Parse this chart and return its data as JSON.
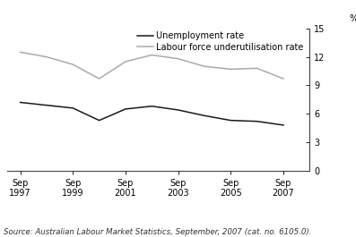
{
  "source_text": "Source: Australian Labour Market Statistics, September, 2007 (cat. no. 6105.0).",
  "ylabel": "%",
  "ylim": [
    0,
    15
  ],
  "yticks": [
    0,
    3,
    6,
    9,
    12,
    15
  ],
  "x_tick_positions": [
    1997,
    1999,
    2001,
    2003,
    2005,
    2007
  ],
  "x_labels": [
    "Sep\n1997",
    "Sep\n1999",
    "Sep\n2001",
    "Sep\n2003",
    "Sep\n2005",
    "Sep\n2007"
  ],
  "xlim": [
    1996.5,
    2008.0
  ],
  "unemployment_x": [
    1997,
    1998,
    1999,
    2000,
    2001,
    2002,
    2003,
    2004,
    2005,
    2006,
    2007
  ],
  "unemployment_y": [
    7.2,
    6.9,
    6.6,
    5.3,
    6.5,
    6.8,
    6.4,
    5.8,
    5.3,
    5.2,
    4.8
  ],
  "underutilisation_x": [
    1997,
    1998,
    1999,
    2000,
    2001,
    2002,
    2003,
    2004,
    2005,
    2006,
    2007
  ],
  "underutilisation_y": [
    12.5,
    12.0,
    11.2,
    9.7,
    11.5,
    12.2,
    11.8,
    11.0,
    10.7,
    10.8,
    9.7
  ],
  "unemployment_color": "#1a1a1a",
  "underutilisation_color": "#aaaaaa",
  "background_color": "#ffffff",
  "legend_unemployment": "Unemployment rate",
  "legend_underutilisation": "Labour force underutilisation rate",
  "line_width": 1.1,
  "font_size_ticks": 7.0,
  "font_size_legend": 7.0,
  "font_size_source": 6.2,
  "font_size_ylabel": 7.5
}
